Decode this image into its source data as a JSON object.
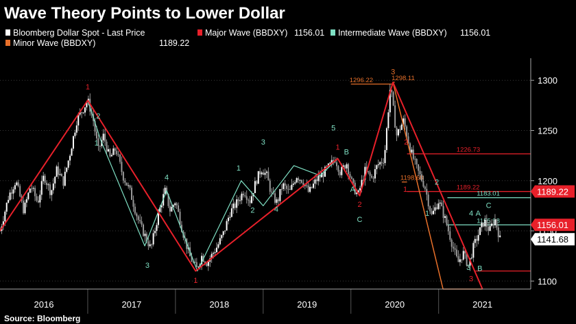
{
  "chart_data": {
    "type": "line",
    "title": "Wave Theory Points to Lower Dollar",
    "source": "Source: Bloomberg",
    "colors": {
      "price": "#ffffff",
      "major": "#e8202a",
      "intermediate": "#7fe0c4",
      "minor": "#e8702a",
      "grid": "#3a3a3a"
    },
    "legend": [
      {
        "id": "price",
        "label": "Bloomberg Dollar Spot - Last Price",
        "value": "",
        "color": "#ffffff"
      },
      {
        "id": "major",
        "label": "Major Wave (BBDXY)",
        "value": "1156.01",
        "color": "#e8202a"
      },
      {
        "id": "intermediate",
        "label": "Intermediate Wave (BBDXY)",
        "value": "1156.01",
        "color": "#7fe0c4"
      },
      {
        "id": "minor",
        "label": "Minor Wave (BBDXY)",
        "value": "1189.22",
        "color": "#e8702a"
      }
    ],
    "x_range": [
      2015.5,
      2021.55
    ],
    "ylim": [
      1092,
      1322
    ],
    "y_ticks": [
      1100,
      1150,
      1200,
      1250,
      1300
    ],
    "y_tick_labels": [
      "1100",
      "1150",
      "1200",
      "1250",
      "1300"
    ],
    "year_labels": [
      {
        "x": 2016.0,
        "label": "2016"
      },
      {
        "x": 2017.0,
        "label": "2017"
      },
      {
        "x": 2018.0,
        "label": "2018"
      },
      {
        "x": 2019.0,
        "label": "2019"
      },
      {
        "x": 2020.0,
        "label": "2020"
      },
      {
        "x": 2021.0,
        "label": "2021"
      }
    ],
    "year_boundaries": [
      2016.5,
      2017.5,
      2018.5,
      2019.5,
      2020.5
    ],
    "price_anchors": [
      [
        2015.5,
        1150
      ],
      [
        2015.6,
        1185
      ],
      [
        2015.68,
        1200
      ],
      [
        2015.77,
        1170
      ],
      [
        2015.85,
        1195
      ],
      [
        2015.93,
        1178
      ],
      [
        2016.0,
        1205
      ],
      [
        2016.08,
        1188
      ],
      [
        2016.15,
        1212
      ],
      [
        2016.22,
        1198
      ],
      [
        2016.3,
        1228
      ],
      [
        2016.38,
        1262
      ],
      [
        2016.44,
        1270
      ],
      [
        2016.5,
        1280
      ],
      [
        2016.56,
        1262
      ],
      [
        2016.62,
        1230
      ],
      [
        2016.68,
        1245
      ],
      [
        2016.75,
        1222
      ],
      [
        2016.82,
        1232
      ],
      [
        2016.9,
        1205
      ],
      [
        2016.98,
        1190
      ],
      [
        2017.05,
        1168
      ],
      [
        2017.1,
        1155
      ],
      [
        2017.18,
        1140
      ],
      [
        2017.22,
        1132
      ],
      [
        2017.3,
        1165
      ],
      [
        2017.38,
        1190
      ],
      [
        2017.44,
        1170
      ],
      [
        2017.5,
        1180
      ],
      [
        2017.58,
        1150
      ],
      [
        2017.66,
        1125
      ],
      [
        2017.74,
        1112
      ],
      [
        2017.8,
        1125
      ],
      [
        2017.86,
        1118
      ],
      [
        2017.93,
        1128
      ],
      [
        2017.98,
        1135
      ],
      [
        2018.05,
        1148
      ],
      [
        2018.12,
        1168
      ],
      [
        2018.2,
        1178
      ],
      [
        2018.28,
        1190
      ],
      [
        2018.35,
        1180
      ],
      [
        2018.42,
        1200
      ],
      [
        2018.48,
        1212
      ],
      [
        2018.54,
        1205
      ],
      [
        2018.6,
        1185
      ],
      [
        2018.66,
        1178
      ],
      [
        2018.72,
        1196
      ],
      [
        2018.8,
        1188
      ],
      [
        2018.88,
        1205
      ],
      [
        2018.95,
        1200
      ],
      [
        2019.02,
        1188
      ],
      [
        2019.1,
        1200
      ],
      [
        2019.18,
        1207
      ],
      [
        2019.26,
        1215
      ],
      [
        2019.32,
        1222
      ],
      [
        2019.38,
        1208
      ],
      [
        2019.45,
        1218
      ],
      [
        2019.52,
        1195
      ],
      [
        2019.58,
        1185
      ],
      [
        2019.66,
        1210
      ],
      [
        2019.74,
        1202
      ],
      [
        2019.8,
        1215
      ],
      [
        2019.88,
        1222
      ],
      [
        2019.95,
        1295
      ],
      [
        2020.02,
        1245
      ],
      [
        2020.1,
        1260
      ],
      [
        2020.18,
        1230
      ],
      [
        2020.26,
        1210
      ],
      [
        2020.34,
        1195
      ],
      [
        2020.42,
        1165
      ],
      [
        2020.5,
        1180
      ],
      [
        2020.58,
        1160
      ],
      [
        2020.66,
        1135
      ],
      [
        2020.72,
        1118
      ],
      [
        2020.78,
        1128
      ],
      [
        2020.84,
        1115
      ],
      [
        2020.9,
        1135
      ],
      [
        2020.96,
        1148
      ],
      [
        2021.02,
        1160
      ],
      [
        2021.08,
        1150
      ],
      [
        2021.14,
        1162
      ],
      [
        2021.2,
        1141.68
      ]
    ],
    "major_wave": [
      [
        2015.5,
        1150
      ],
      [
        2016.5,
        1280
      ],
      [
        2017.73,
        1110
      ],
      [
        2019.35,
        1222
      ],
      [
        2019.6,
        1185
      ],
      [
        2019.98,
        1298
      ],
      [
        2021.0,
        1092
      ]
    ],
    "intermediate_wave": [
      [
        2016.5,
        1280
      ],
      [
        2016.65,
        1240
      ],
      [
        2017.15,
        1135
      ],
      [
        2017.4,
        1190
      ],
      [
        2017.75,
        1110
      ],
      [
        2018.25,
        1200
      ],
      [
        2018.5,
        1175
      ],
      [
        2018.85,
        1215
      ],
      [
        2019.15,
        1205
      ],
      [
        2019.35,
        1222
      ]
    ],
    "minor_wave": [
      [
        2019.98,
        1298
      ],
      [
        2020.55,
        1092
      ],
      [
        2021.0,
        1092
      ]
    ],
    "levels": [
      {
        "value": 1296.22,
        "label": "1296.22",
        "x_start": 2019.5,
        "x_end": 2019.98,
        "color": "#e8702a"
      },
      {
        "value": 1298.11,
        "label": "1298.11",
        "x_start": 2019.98,
        "x_end": 2020.0,
        "color": "#e8702a"
      },
      {
        "value": 1226.73,
        "label": "1226.73",
        "x_start": 2020.14,
        "x_end": 2021.55,
        "color": "#e8202a"
      },
      {
        "value": 1198.68,
        "label": "1198.68",
        "x_start": 2020.08,
        "x_end": 2020.14,
        "color": "#e8702a"
      },
      {
        "value": 1189.22,
        "label": "1189.22",
        "x_start": 2020.14,
        "x_end": 2021.55,
        "color": "#e8202a"
      },
      {
        "value": 1183.01,
        "label": "1183.01",
        "x_start": 2020.6,
        "x_end": 2021.55,
        "color": "#7fe0c4"
      },
      {
        "value": 1155.98,
        "label": "1155.98",
        "x_start": 2020.6,
        "x_end": 2021.55,
        "color": "#7fe0c4"
      },
      {
        "value": 1110,
        "label": "",
        "x_start": 2020.92,
        "x_end": 2021.55,
        "color": "#e8202a"
      }
    ],
    "price_tags": [
      {
        "value": 1189.22,
        "label": "1189.22",
        "bg": "#e8202a",
        "fg": "#ffffff"
      },
      {
        "value": 1156.01,
        "label": "1156.01",
        "bg": "#e8202a",
        "fg": "#ffffff"
      },
      {
        "value": 1141.68,
        "label": "1141.68",
        "bg": "#ffffff",
        "fg": "#000000"
      }
    ],
    "wave_labels": [
      {
        "x": 2016.5,
        "y": 1291,
        "label": "1",
        "color": "#e8202a"
      },
      {
        "x": 2016.62,
        "y": 1262,
        "label": "2",
        "color": "#7fe0c4"
      },
      {
        "x": 2016.6,
        "y": 1235,
        "label": "1",
        "color": "#7fe0c4"
      },
      {
        "x": 2017.4,
        "y": 1201,
        "label": "4",
        "color": "#7fe0c4"
      },
      {
        "x": 2017.18,
        "y": 1113,
        "label": "3",
        "color": "#7fe0c4"
      },
      {
        "x": 2017.73,
        "y": 1098,
        "label": "1",
        "color": "#e8202a"
      },
      {
        "x": 2018.22,
        "y": 1210,
        "label": "1",
        "color": "#7fe0c4"
      },
      {
        "x": 2018.38,
        "y": 1168,
        "label": "2",
        "color": "#7fe0c4"
      },
      {
        "x": 2018.5,
        "y": 1236,
        "label": "3",
        "color": "#7fe0c4"
      },
      {
        "x": 2018.65,
        "y": 1169,
        "label": "4",
        "color": "#7fe0c4"
      },
      {
        "x": 2019.3,
        "y": 1250,
        "label": "5",
        "color": "#7fe0c4"
      },
      {
        "x": 2019.35,
        "y": 1231,
        "label": "1",
        "color": "#e8202a"
      },
      {
        "x": 2019.45,
        "y": 1226,
        "label": "B",
        "color": "#7fe0c4"
      },
      {
        "x": 2019.52,
        "y": 1189,
        "label": "A",
        "color": "#7fe0c4"
      },
      {
        "x": 2019.6,
        "y": 1174,
        "label": "2",
        "color": "#e8202a"
      },
      {
        "x": 2019.6,
        "y": 1159,
        "label": "C",
        "color": "#7fe0c4"
      },
      {
        "x": 2019.98,
        "y": 1306,
        "label": "3",
        "color": "#e8702a"
      },
      {
        "x": 2020.13,
        "y": 1236,
        "label": "2",
        "color": "#e8202a"
      },
      {
        "x": 2020.12,
        "y": 1189,
        "label": "1",
        "color": "#e8202a"
      },
      {
        "x": 2020.48,
        "y": 1196,
        "label": "2",
        "color": "#7fe0c4"
      },
      {
        "x": 2020.37,
        "y": 1165,
        "label": "1",
        "color": "#7fe0c4"
      },
      {
        "x": 2020.87,
        "y": 1165,
        "label": "4",
        "color": "#7fe0c4"
      },
      {
        "x": 2020.95,
        "y": 1165,
        "label": "A",
        "color": "#7fe0c4"
      },
      {
        "x": 2021.07,
        "y": 1173,
        "label": "C",
        "color": "#7fe0c4"
      },
      {
        "x": 2020.84,
        "y": 1111,
        "label": "3",
        "color": "#7fe0c4"
      },
      {
        "x": 2020.97,
        "y": 1110,
        "label": "B",
        "color": "#7fe0c4"
      },
      {
        "x": 2020.87,
        "y": 1100,
        "label": "3",
        "color": "#e8202a"
      }
    ]
  }
}
